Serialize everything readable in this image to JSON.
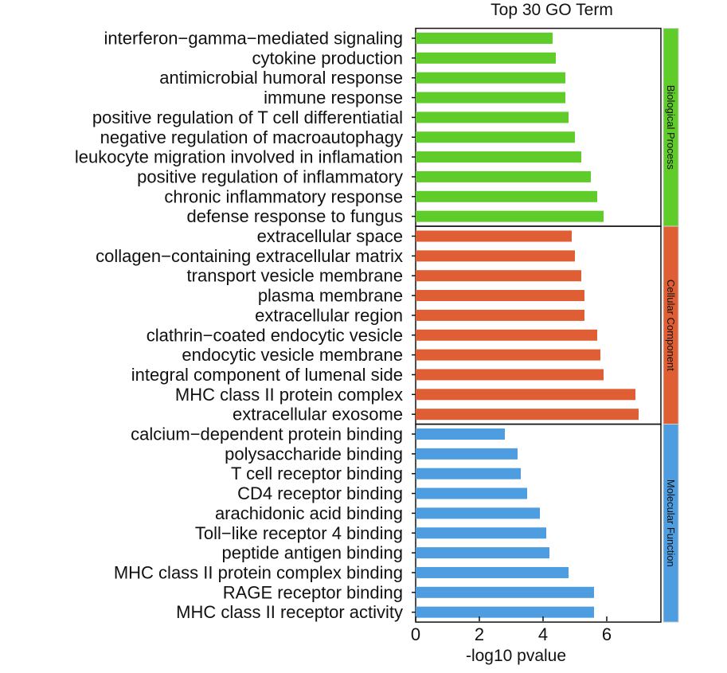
{
  "chart_data": {
    "type": "bar",
    "orientation": "horizontal",
    "title": "Top 30 GO Term",
    "xlabel": "-log10 pvalue",
    "ylabel": "",
    "xlim": [
      0,
      7.7
    ],
    "xticks": [
      0,
      2,
      4,
      6
    ],
    "grid": false,
    "legend": "none",
    "groups": [
      {
        "name": "Biological Process",
        "color": "#5fcc2a",
        "categories": [
          "interferon−gamma−mediated signaling",
          "cytokine production",
          "antimicrobial humoral response",
          "immune response",
          "positive regulation of T cell differentiatial",
          "negative regulation of macroautophagy",
          "leukocyte migration involved in inflamation",
          "positive regulation of inflammatory",
          "chronic inflammatory response",
          "defense response to fungus"
        ],
        "values": [
          4.3,
          4.4,
          4.7,
          4.7,
          4.8,
          5.0,
          5.2,
          5.5,
          5.7,
          5.9
        ]
      },
      {
        "name": "Cellular Component",
        "color": "#e05e33",
        "categories": [
          "extracellular space",
          "collagen−containing extracellular matrix",
          "transport vesicle membrane",
          "plasma membrane",
          "extracellular region",
          "clathrin−coated endocytic vesicle",
          "endocytic vesicle membrane",
          "integral component of lumenal side",
          "MHC class II protein complex",
          "extracellular exosome"
        ],
        "values": [
          4.9,
          5.0,
          5.2,
          5.3,
          5.3,
          5.7,
          5.8,
          5.9,
          6.9,
          7.0
        ]
      },
      {
        "name": "Molecular Function",
        "color": "#4d9de0",
        "categories": [
          "calcium−dependent protein binding",
          "polysaccharide binding",
          "T cell receptor binding",
          "CD4 receptor binding",
          "arachidonic acid binding",
          "Toll−like receptor 4 binding",
          "peptide antigen binding",
          "MHC class II protein complex binding",
          "RAGE receptor binding",
          "MHC class II receptor activity"
        ],
        "values": [
          2.8,
          3.2,
          3.3,
          3.5,
          3.9,
          4.1,
          4.2,
          4.8,
          5.6,
          5.6
        ]
      }
    ]
  }
}
